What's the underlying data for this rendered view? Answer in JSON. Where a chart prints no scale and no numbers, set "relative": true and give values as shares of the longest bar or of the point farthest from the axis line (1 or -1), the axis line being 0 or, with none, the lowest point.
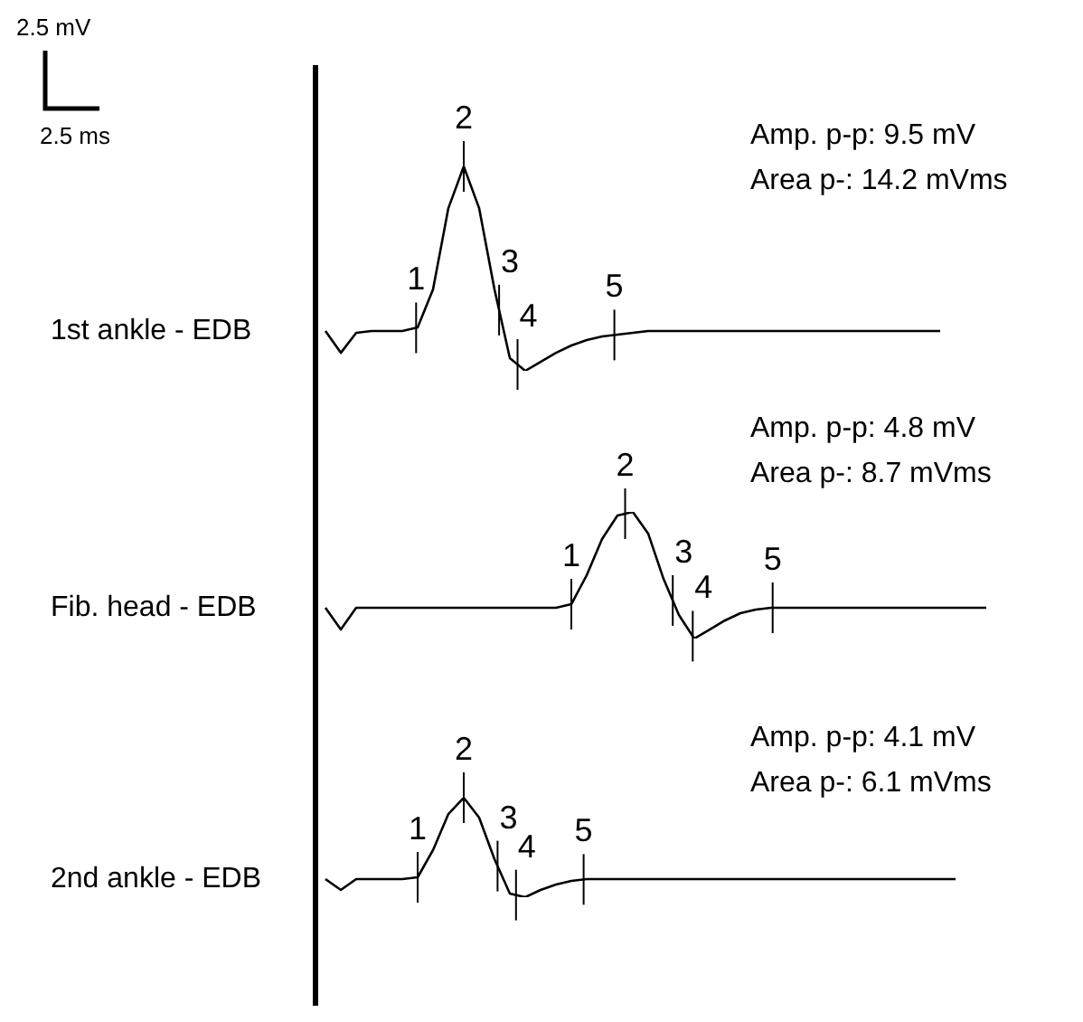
{
  "chart_data": [
    {
      "type": "line",
      "relative": true,
      "ylabel": "1st ankle - EDB",
      "color": "#000000",
      "marker": "none",
      "legend": false,
      "categories": [
        null,
        null,
        null,
        null,
        null,
        null,
        null,
        null,
        null,
        null,
        null,
        null,
        null,
        null,
        null,
        null,
        null,
        null,
        null,
        null,
        null,
        null,
        null,
        null,
        null,
        null,
        null,
        null,
        null,
        null,
        null,
        null,
        null,
        null,
        null,
        null,
        null,
        null,
        null,
        null,
        null,
        null,
        null,
        null,
        null
      ],
      "values": [
        0.195,
        0.088,
        0.186,
        0.195,
        0.195,
        0.195,
        0.212,
        0.398,
        0.796,
        1,
        0.796,
        0.398,
        0.062,
        0,
        0.044,
        0.088,
        0.124,
        0.15,
        0.168,
        0.177,
        0.186,
        0.195,
        0.195,
        0.195,
        0.195,
        0.195,
        0.195,
        0.195,
        0.195,
        0.195,
        0.195,
        0.195,
        0.195,
        0.195,
        0.195,
        0.195,
        0.195,
        0.195,
        0.195,
        0.195,
        0.195,
        null,
        null,
        null,
        null
      ],
      "annotations": [
        "Amp. p-p: 9.5 mV",
        "Area p-: 14.2 mVms",
        "1",
        "2",
        "3",
        "4",
        "5",
        "2.5 mV",
        "2.5 ms"
      ]
    },
    {
      "type": "line",
      "relative": true,
      "ylabel": "Fib. head - EDB",
      "color": "#000000",
      "marker": "none",
      "legend": false,
      "categories": [
        null,
        null,
        null,
        null,
        null,
        null,
        null,
        null,
        null,
        null,
        null,
        null,
        null,
        null,
        null,
        null,
        null,
        null,
        null,
        null,
        null,
        null,
        null,
        null,
        null,
        null,
        null,
        null,
        null,
        null,
        null,
        null,
        null,
        null,
        null,
        null,
        null,
        null,
        null,
        null,
        null,
        null,
        null,
        null,
        null
      ],
      "values": [
        0.243,
        0.071,
        0.243,
        0.243,
        0.243,
        0.243,
        0.243,
        0.243,
        0.243,
        0.243,
        0.243,
        0.243,
        0.243,
        0.243,
        0.243,
        0.243,
        0.271,
        0.5,
        0.786,
        0.971,
        1,
        0.829,
        0.471,
        0.186,
        0,
        0.071,
        0.143,
        0.2,
        0.229,
        0.243,
        0.243,
        0.243,
        0.243,
        0.243,
        0.243,
        0.243,
        0.243,
        0.243,
        0.243,
        0.243,
        0.243,
        0.243,
        0.243,
        0.243,
        null
      ],
      "annotations": [
        "Amp. p-p: 4.8 mV",
        "Area p-: 8.7 mVms",
        "1",
        "2",
        "3",
        "4",
        "5"
      ]
    },
    {
      "type": "line",
      "relative": true,
      "ylabel": "2nd ankle - EDB",
      "color": "#000000",
      "marker": "none",
      "legend": false,
      "categories": [
        null,
        null,
        null,
        null,
        null,
        null,
        null,
        null,
        null,
        null,
        null,
        null,
        null,
        null,
        null,
        null,
        null,
        null,
        null,
        null,
        null,
        null,
        null,
        null,
        null,
        null,
        null,
        null,
        null,
        null,
        null,
        null,
        null,
        null,
        null,
        null,
        null,
        null,
        null,
        null,
        null,
        null,
        null,
        null,
        null
      ],
      "values": [
        0.182,
        0.073,
        0.182,
        0.182,
        0.182,
        0.182,
        0.2,
        0.473,
        0.836,
        1,
        0.8,
        0.382,
        0.036,
        0,
        0.073,
        0.127,
        0.164,
        0.182,
        0.182,
        0.182,
        0.182,
        0.182,
        0.182,
        0.182,
        0.182,
        0.182,
        0.182,
        0.182,
        0.182,
        0.182,
        0.182,
        0.182,
        0.182,
        0.182,
        0.182,
        0.182,
        0.182,
        0.182,
        0.182,
        0.182,
        0.182,
        0.182,
        null,
        null,
        null
      ],
      "annotations": [
        "Amp. p-p: 4.1 mV",
        "Area p-: 6.1 mVms",
        "1",
        "2",
        "3",
        "4",
        "5"
      ]
    }
  ]
}
